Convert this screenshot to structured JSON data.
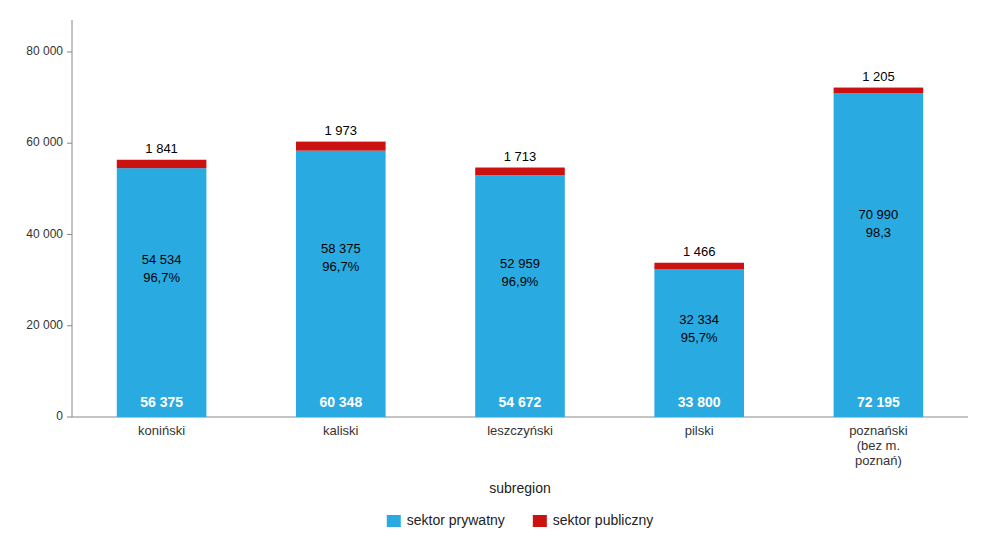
{
  "chart_data": {
    "type": "bar",
    "stacked": true,
    "data_labels": true,
    "grid": false,
    "legend": "lower center",
    "x_label": "subregion",
    "categories": [
      "koniński",
      "kaliski",
      "leszczyński",
      "pilski",
      "poznański\n(bez m.\npoznań)"
    ],
    "series": [
      {
        "name": "sektor prywatny",
        "color": "#29ABE2",
        "values": [
          54534,
          58375,
          52959,
          32334,
          70990
        ],
        "value_labels": [
          "54 534",
          "58 375",
          "52 959",
          "32 334",
          "70 990"
        ],
        "shares": [
          96.7,
          96.7,
          96.9,
          95.7,
          98.3
        ],
        "share_labels": [
          "96,7%",
          "96,7%",
          "96,9%",
          "95,7%",
          "98,3"
        ]
      },
      {
        "name": "sektor publiczny",
        "color": "#CC1111",
        "values": [
          1841,
          1973,
          1713,
          1466,
          1205
        ],
        "value_labels": [
          "1 841",
          "1 973",
          "1 713",
          "1 466",
          "1 205"
        ]
      }
    ],
    "totals": [
      56375,
      60348,
      54672,
      33800,
      72195
    ],
    "total_labels": [
      "56 375",
      "60 348",
      "54 672",
      "33 800",
      "72 195"
    ],
    "ylim": [
      0,
      87000
    ],
    "yticks": [
      0,
      {
        "value": 20000,
        "label": "20 000"
      },
      {
        "value": 40000,
        "label": "40 000"
      },
      {
        "value": 60000,
        "label": "60 000"
      },
      {
        "value": 80000,
        "label": "80 000"
      }
    ]
  }
}
